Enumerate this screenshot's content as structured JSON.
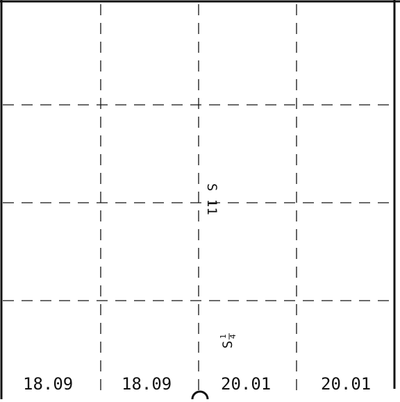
{
  "map": {
    "section_labels": {
      "center_rotated": "S 11",
      "lower_label": "S",
      "lower_fraction_numerator": "1",
      "lower_fraction_denominator": "4"
    },
    "bottom_labels": [
      "18.09",
      "18.09",
      "20.01",
      "20.01"
    ],
    "colors": {
      "line": "#111111",
      "background": "#ffffff"
    }
  }
}
